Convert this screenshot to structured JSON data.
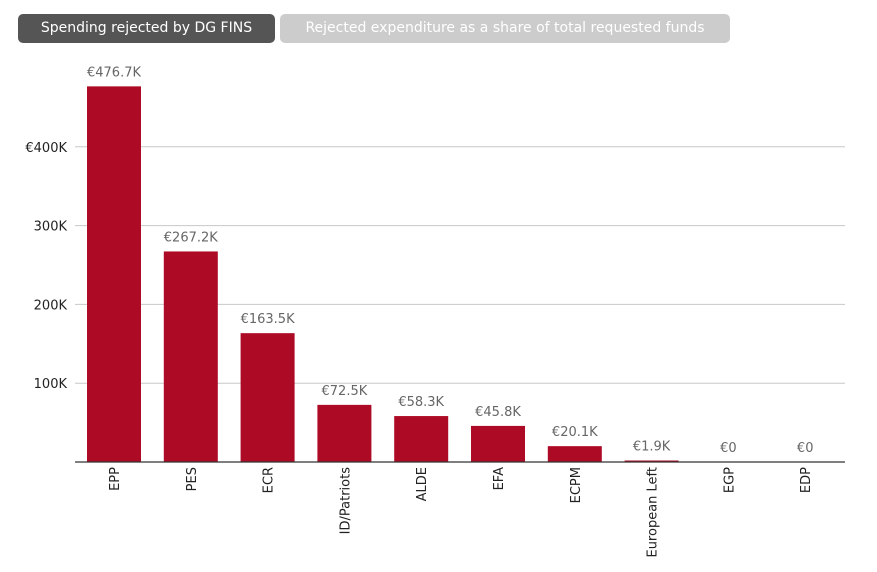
{
  "tabs": [
    {
      "label": "Spending rejected by DG FINS",
      "active": true
    },
    {
      "label": "Rejected expenditure as a share of total requested funds",
      "active": false
    }
  ],
  "colors": {
    "bar": "#ad0a26",
    "grid": "#c8c8c8",
    "axis": "#333333",
    "tab_active_bg": "#555555",
    "tab_inactive_bg": "#cccccc"
  },
  "chart_data": {
    "type": "bar",
    "title": "",
    "xlabel": "",
    "ylabel": "",
    "categories": [
      "EPP",
      "PES",
      "ECR",
      "ID/Patriots",
      "ALDE",
      "EFA",
      "ECPM",
      "European Left",
      "EGP",
      "EDP"
    ],
    "values": [
      476.7,
      267.2,
      163.5,
      72.5,
      58.3,
      45.8,
      20.1,
      1.9,
      0,
      0
    ],
    "value_unit": "thousand EUR",
    "data_labels": [
      "€476.7K",
      "€267.2K",
      "€163.5K",
      "€72.5K",
      "€58.3K",
      "€45.8K",
      "€20.1K",
      "€1.9K",
      "€0",
      "€0"
    ],
    "yticks": [
      100,
      200,
      300,
      400
    ],
    "ytick_labels": [
      "100K",
      "200K",
      "300K",
      "€400K"
    ],
    "ylim": [
      0,
      500
    ],
    "grid": true,
    "legend": "none"
  }
}
